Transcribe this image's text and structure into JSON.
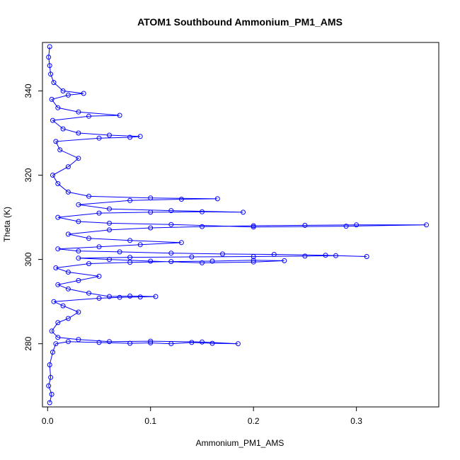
{
  "chart_data": {
    "type": "scatter",
    "title": "ATOM1 Southbound Ammonium_PM1_AMS",
    "xlabel": "Ammonium_PM1_AMS",
    "ylabel": "Theta (K)",
    "xlim": [
      -0.005,
      0.38
    ],
    "ylim": [
      265,
      351.5
    ],
    "x_ticks": [
      "0.0",
      "0.1",
      "0.2",
      "0.3"
    ],
    "x_tick_values": [
      0.0,
      0.1,
      0.2,
      0.3
    ],
    "y_ticks": [
      "280",
      "300",
      "320",
      "340"
    ],
    "y_tick_values": [
      280,
      300,
      320,
      340
    ],
    "grid": false,
    "legend": "none",
    "color": "#0000ff",
    "marker": "open-circle",
    "connected": true,
    "series": [
      {
        "points": [
          [
            0.002,
            266
          ],
          [
            0.004,
            268
          ],
          [
            0.001,
            270
          ],
          [
            0.003,
            272
          ],
          [
            0.002,
            275
          ],
          [
            0.005,
            278
          ],
          [
            0.008,
            280
          ],
          [
            0.02,
            280.5
          ],
          [
            0.05,
            280.3
          ],
          [
            0.08,
            280.1
          ],
          [
            0.1,
            280.2
          ],
          [
            0.12,
            280.0
          ],
          [
            0.14,
            280.3
          ],
          [
            0.16,
            280.1
          ],
          [
            0.185,
            280.0
          ],
          [
            0.15,
            280.4
          ],
          [
            0.1,
            280.6
          ],
          [
            0.06,
            280.5
          ],
          [
            0.03,
            281
          ],
          [
            0.01,
            281.5
          ],
          [
            0.004,
            283
          ],
          [
            0.01,
            285
          ],
          [
            0.02,
            286
          ],
          [
            0.03,
            287.5
          ],
          [
            0.015,
            289
          ],
          [
            0.006,
            290
          ],
          [
            0.05,
            290.8
          ],
          [
            0.07,
            291.0
          ],
          [
            0.09,
            291.1
          ],
          [
            0.105,
            291.2
          ],
          [
            0.08,
            291.3
          ],
          [
            0.06,
            291.2
          ],
          [
            0.04,
            292
          ],
          [
            0.02,
            293
          ],
          [
            0.01,
            294
          ],
          [
            0.03,
            295
          ],
          [
            0.05,
            296
          ],
          [
            0.02,
            297
          ],
          [
            0.008,
            298
          ],
          [
            0.04,
            299
          ],
          [
            0.08,
            299.3
          ],
          [
            0.12,
            299.5
          ],
          [
            0.16,
            299.6
          ],
          [
            0.2,
            299.8
          ],
          [
            0.23,
            299.7
          ],
          [
            0.2,
            299.4
          ],
          [
            0.15,
            299.2
          ],
          [
            0.1,
            299.6
          ],
          [
            0.06,
            300
          ],
          [
            0.03,
            300.3
          ],
          [
            0.08,
            300.5
          ],
          [
            0.14,
            300.6
          ],
          [
            0.2,
            300.7
          ],
          [
            0.25,
            300.8
          ],
          [
            0.28,
            300.9
          ],
          [
            0.31,
            300.7
          ],
          [
            0.27,
            301.0
          ],
          [
            0.22,
            301.2
          ],
          [
            0.17,
            301.3
          ],
          [
            0.12,
            301.5
          ],
          [
            0.07,
            301.8
          ],
          [
            0.03,
            302
          ],
          [
            0.01,
            302.5
          ],
          [
            0.05,
            303
          ],
          [
            0.09,
            303.5
          ],
          [
            0.13,
            304
          ],
          [
            0.08,
            304.5
          ],
          [
            0.04,
            305
          ],
          [
            0.02,
            306
          ],
          [
            0.06,
            307
          ],
          [
            0.1,
            307.5
          ],
          [
            0.15,
            307.8
          ],
          [
            0.2,
            308
          ],
          [
            0.25,
            308.1
          ],
          [
            0.3,
            308.2
          ],
          [
            0.368,
            308.2
          ],
          [
            0.29,
            307.9
          ],
          [
            0.2,
            307.7
          ],
          [
            0.12,
            308.3
          ],
          [
            0.06,
            308.6
          ],
          [
            0.03,
            309
          ],
          [
            0.01,
            310
          ],
          [
            0.05,
            311
          ],
          [
            0.1,
            311.2
          ],
          [
            0.15,
            311.3
          ],
          [
            0.19,
            311.2
          ],
          [
            0.12,
            311.6
          ],
          [
            0.06,
            312
          ],
          [
            0.03,
            313
          ],
          [
            0.08,
            314
          ],
          [
            0.13,
            314.3
          ],
          [
            0.165,
            314.4
          ],
          [
            0.1,
            314.6
          ],
          [
            0.04,
            315
          ],
          [
            0.02,
            316
          ],
          [
            0.01,
            318
          ],
          [
            0.005,
            320
          ],
          [
            0.02,
            322
          ],
          [
            0.03,
            324
          ],
          [
            0.012,
            326
          ],
          [
            0.008,
            328
          ],
          [
            0.05,
            328.8
          ],
          [
            0.08,
            329
          ],
          [
            0.09,
            329.2
          ],
          [
            0.06,
            329.5
          ],
          [
            0.03,
            330
          ],
          [
            0.015,
            331
          ],
          [
            0.005,
            333
          ],
          [
            0.04,
            334
          ],
          [
            0.07,
            334.2
          ],
          [
            0.03,
            335
          ],
          [
            0.01,
            336
          ],
          [
            0.004,
            338
          ],
          [
            0.02,
            339
          ],
          [
            0.035,
            339.4
          ],
          [
            0.015,
            340
          ],
          [
            0.006,
            342
          ],
          [
            0.003,
            344
          ],
          [
            0.002,
            346
          ],
          [
            0.001,
            348
          ],
          [
            0.002,
            350.5
          ]
        ]
      }
    ]
  }
}
